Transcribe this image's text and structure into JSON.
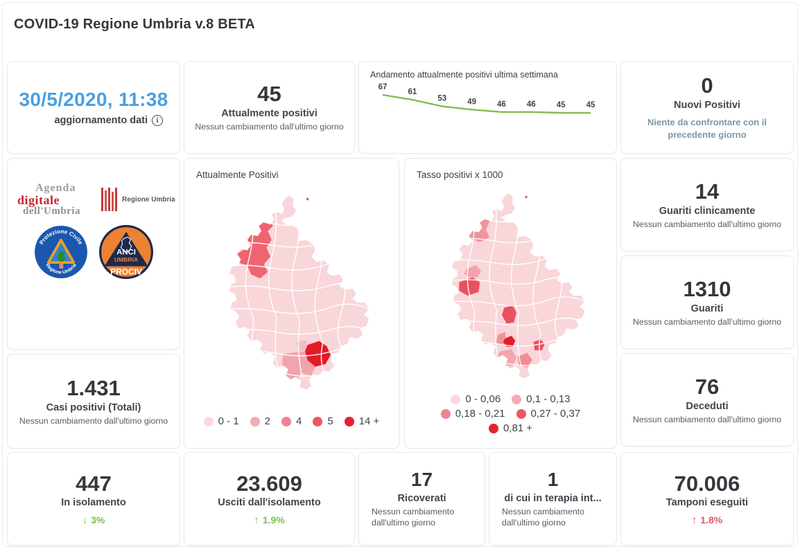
{
  "page": {
    "title": "COVID-19 Regione Umbria v.8 BETA"
  },
  "update": {
    "datetime": "30/5/2020, 11:38",
    "label": "aggiornamento dati"
  },
  "kpis": {
    "attualmente_positivi": {
      "value": "45",
      "label": "Attualmente positivi",
      "note": "Nessun cambiamento dall'ultimo giorno"
    },
    "nuovi_positivi": {
      "value": "0",
      "label": "Nuovi Positivi",
      "note": "Niente da confrontare con il precedente giorno"
    },
    "guariti_clinicamente": {
      "value": "14",
      "label": "Guariti clinicamente",
      "note": "Nessun cambiamento dall'ultimo giorno"
    },
    "guariti": {
      "value": "1310",
      "label": "Guariti",
      "note": "Nessun cambiamento dall'ultimo giorno"
    },
    "deceduti": {
      "value": "76",
      "label": "Deceduti",
      "note": "Nessun cambiamento dall'ultimo giorno"
    },
    "casi_totali": {
      "value": "1.431",
      "label": "Casi positivi (Totali)",
      "note": "Nessun cambiamento dall'ultimo giorno"
    },
    "in_isolamento": {
      "value": "447",
      "label": "In isolamento",
      "delta_arrow": "↓",
      "delta": "3%",
      "delta_color": "#7fbe4f"
    },
    "usciti_isolamento": {
      "value": "23.609",
      "label": "Usciti dall'isolamento",
      "delta_arrow": "↑",
      "delta": "1.9%",
      "delta_color": "#7fbe4f"
    },
    "ricoverati": {
      "value": "17",
      "label": "Ricoverati",
      "note": "Nessun cambiamento dall'ultimo giorno"
    },
    "terapia_intensiva": {
      "value": "1",
      "label": "di cui in terapia int...",
      "note": "Nessun cambiamento dall'ultimo giorno"
    },
    "tamponi": {
      "value": "70.006",
      "label": "Tamponi eseguiti",
      "delta_arrow": "↑",
      "delta": "1.8%",
      "delta_color": "#e25862"
    }
  },
  "chart_data": {
    "type": "line",
    "title": "Andamento attualmente positivi ultima settimana",
    "x": [
      1,
      2,
      3,
      4,
      5,
      6,
      7,
      8
    ],
    "values": [
      67,
      61,
      53,
      49,
      46,
      46,
      45,
      45
    ],
    "line_color": "#82bd4f",
    "label_color": "#3e4348",
    "data_labels": true,
    "axes_hidden": true,
    "legend_position": "none"
  },
  "maps": {
    "attualmente_positivi": {
      "title": "Attualmente Positivi",
      "legend": [
        {
          "label": "0 - 1",
          "color": "#fad8dc"
        },
        {
          "label": "2",
          "color": "#f5aab4"
        },
        {
          "label": "4",
          "color": "#f0838f"
        },
        {
          "label": "5",
          "color": "#ea5964"
        },
        {
          "label": "14 +",
          "color": "#e42330"
        }
      ]
    },
    "tasso_positivi": {
      "title": "Tasso positivi x 1000",
      "legend": [
        {
          "label": "0 - 0,06",
          "color": "#fad8dc"
        },
        {
          "label": "0,1 - 0,13",
          "color": "#f5aab4"
        },
        {
          "label": "0,18 - 0,21",
          "color": "#f0838f"
        },
        {
          "label": "0,27 - 0,37",
          "color": "#ea5964"
        },
        {
          "label": "0,81 +",
          "color": "#e42330"
        }
      ]
    }
  },
  "logos": {
    "agenda_digitale": {
      "line1": "Agenda",
      "line2": "digitale",
      "line3": "dell'Umbria"
    },
    "regione_umbria": {
      "text": "Regione Umbria"
    },
    "protezione_civile": {
      "top": "Protezione Civile",
      "bottom": "Regione Umbria"
    },
    "anci": {
      "line1": "ANCI",
      "line2": "UMBRIA",
      "line3": "PROCIV"
    }
  },
  "colors": {
    "accent_blue": "#4ba0e0",
    "green": "#7fbe4f",
    "red": "#e25862",
    "map_base": "#f8d6d9",
    "text_dark": "#33383d",
    "text_muted": "#565b60",
    "note_teal": "#7e96a4"
  }
}
